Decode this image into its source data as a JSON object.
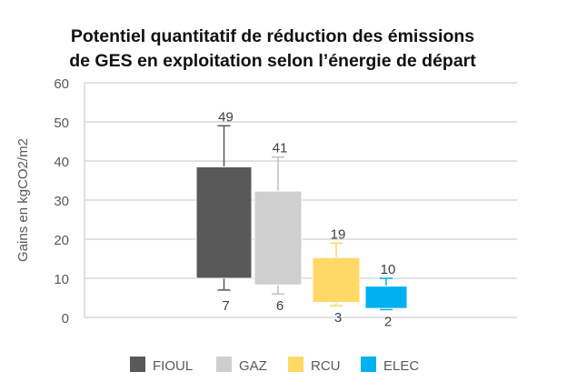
{
  "chart_data": {
    "type": "bar",
    "subtype": "floating-box-with-error-bars",
    "title": [
      "Potentiel quantitatif de réduction des émissions",
      "de GES en exploitation selon l’énergie de départ"
    ],
    "ylabel": "Gains en kgCO2/m2",
    "xlabel": "",
    "ylim": [
      0,
      60
    ],
    "yticks": [
      0,
      10,
      20,
      30,
      40,
      50,
      60
    ],
    "grid": true,
    "legend_position": "bottom",
    "series": [
      {
        "name": "FIOUL",
        "color": "#595959",
        "box": [
          10,
          38.5
        ],
        "min": 7,
        "max": 49,
        "min_label": "7",
        "max_label": "49"
      },
      {
        "name": "GAZ",
        "color": "#d0cfd0",
        "box": [
          8.3,
          32.3
        ],
        "min": 6,
        "max": 41,
        "min_label": "6",
        "max_label": "41"
      },
      {
        "name": "RCU",
        "color": "#ffd966",
        "box": [
          3.8,
          15.3
        ],
        "min": 3,
        "max": 19,
        "min_label": "3",
        "max_label": "19"
      },
      {
        "name": "ELEC",
        "color": "#00b0f0",
        "box": [
          2.3,
          8
        ],
        "min": 2,
        "max": 10,
        "min_label": "2",
        "max_label": "10"
      }
    ]
  }
}
